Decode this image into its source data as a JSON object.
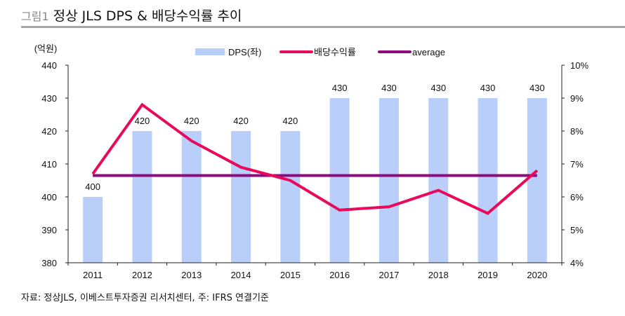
{
  "header": {
    "figure_label": "그림1",
    "title": "정상 JLS DPS & 배당수익률 추이"
  },
  "source": "자료: 정상JLS, 이베스트투자증권 리서치센터, 주: IFRS 연결기준",
  "chart_data": {
    "type": "bar+line",
    "categories": [
      "2011",
      "2012",
      "2013",
      "2014",
      "2015",
      "2016",
      "2017",
      "2018",
      "2019",
      "2020"
    ],
    "left_axis": {
      "unit": "(억원)",
      "ylim": [
        380,
        440
      ],
      "ticks": [
        "380",
        "390",
        "400",
        "410",
        "420",
        "430",
        "440"
      ]
    },
    "right_axis": {
      "ylim": [
        4,
        10
      ],
      "ticks": [
        "4%",
        "5%",
        "6%",
        "7%",
        "8%",
        "9%",
        "10%"
      ]
    },
    "series": [
      {
        "name": "DPS(좌)",
        "type": "bar",
        "axis": "left",
        "color": "#b9cffa",
        "values": [
          400,
          420,
          420,
          420,
          420,
          430,
          430,
          430,
          430,
          430
        ],
        "labels": [
          "400",
          "420",
          "420",
          "420",
          "420",
          "430",
          "430",
          "430",
          "430",
          "430"
        ]
      },
      {
        "name": "배당수익률",
        "type": "line",
        "axis": "right",
        "color": "#e8095a",
        "values": [
          6.7,
          8.8,
          7.7,
          6.9,
          6.5,
          5.6,
          5.7,
          6.2,
          5.5,
          6.8
        ]
      },
      {
        "name": "average",
        "type": "line",
        "axis": "right",
        "color": "#8e0a7e",
        "values": [
          6.65,
          6.65,
          6.65,
          6.65,
          6.65,
          6.65,
          6.65,
          6.65,
          6.65,
          6.65
        ]
      }
    ],
    "legend": "top-center",
    "grid": false
  }
}
